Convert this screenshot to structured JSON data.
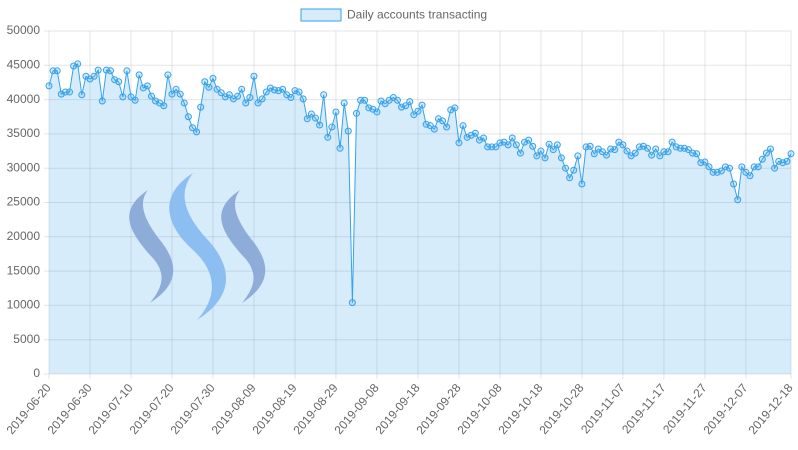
{
  "chart_data": {
    "type": "line",
    "legend": "top",
    "series": [
      {
        "name": "Daily accounts transacting",
        "color": "#36a2eb",
        "values": [
          42000,
          44200,
          44200,
          40800,
          41100,
          41100,
          44900,
          45200,
          40700,
          43400,
          43000,
          43400,
          44300,
          39800,
          44300,
          44200,
          42900,
          42600,
          40400,
          44200,
          40400,
          39900,
          43600,
          41700,
          42000,
          40500,
          39800,
          39500,
          39100,
          43600,
          40800,
          41500,
          40800,
          39500,
          37500,
          35900,
          35300,
          38900,
          42600,
          41800,
          43100,
          41500,
          41000,
          40400,
          40700,
          40100,
          40500,
          41500,
          39500,
          40300,
          43400,
          39500,
          40100,
          41100,
          41700,
          41400,
          41300,
          41500,
          40700,
          40300,
          41300,
          41100,
          40100,
          37200,
          37900,
          37300,
          36300,
          40700,
          34500,
          36000,
          38200,
          32900,
          39500,
          35400,
          10400,
          38000,
          39900,
          39900,
          38800,
          38600,
          38200,
          39800,
          39400,
          39900,
          40300,
          39900,
          38900,
          39100,
          39700,
          37800,
          38300,
          39200,
          36400,
          36200,
          35700,
          37200,
          36900,
          36000,
          38500,
          38800,
          33700,
          36200,
          34500,
          34800,
          35100,
          34100,
          34400,
          33100,
          33100,
          33100,
          33700,
          33800,
          33400,
          34400,
          33400,
          32200,
          33800,
          34100,
          33200,
          31800,
          32500,
          31500,
          33500,
          32700,
          33400,
          31500,
          30000,
          28600,
          29700,
          31800,
          27700,
          33100,
          33200,
          32100,
          32800,
          32400,
          31900,
          32800,
          32700,
          33800,
          33400,
          32500,
          31800,
          32200,
          33100,
          33200,
          32900,
          31900,
          32800,
          31800,
          32400,
          32400,
          33800,
          33100,
          32900,
          32900,
          32700,
          32200,
          32100,
          30800,
          30900,
          30200,
          29400,
          29400,
          29600,
          30200,
          30000,
          27700,
          25400,
          30200,
          29400,
          28900,
          30200,
          30200,
          31300,
          32200,
          32800,
          30000,
          31000,
          30800,
          31000,
          32100
        ]
      }
    ],
    "categories": [
      "2019-06-20",
      null,
      null,
      null,
      null,
      null,
      null,
      null,
      null,
      null,
      "2019-06-30",
      null,
      null,
      null,
      null,
      null,
      null,
      null,
      null,
      null,
      "2019-07-10",
      null,
      null,
      null,
      null,
      null,
      null,
      null,
      null,
      null,
      "2019-07-20",
      null,
      null,
      null,
      null,
      null,
      null,
      null,
      null,
      null,
      "2019-07-30",
      null,
      null,
      null,
      null,
      null,
      null,
      null,
      null,
      null,
      "2019-08-09",
      null,
      null,
      null,
      null,
      null,
      null,
      null,
      null,
      null,
      "2019-08-19",
      null,
      null,
      null,
      null,
      null,
      null,
      null,
      null,
      null,
      "2019-08-29",
      null,
      null,
      null,
      null,
      null,
      null,
      null,
      null,
      null,
      "2019-09-08",
      null,
      null,
      null,
      null,
      null,
      null,
      null,
      null,
      null,
      "2019-09-18",
      null,
      null,
      null,
      null,
      null,
      null,
      null,
      null,
      null,
      "2019-09-28",
      null,
      null,
      null,
      null,
      null,
      null,
      null,
      null,
      null,
      "2019-10-08",
      null,
      null,
      null,
      null,
      null,
      null,
      null,
      null,
      null,
      "2019-10-18",
      null,
      null,
      null,
      null,
      null,
      null,
      null,
      null,
      null,
      "2019-10-28",
      null,
      null,
      null,
      null,
      null,
      null,
      null,
      null,
      null,
      "2019-11-07",
      null,
      null,
      null,
      null,
      null,
      null,
      null,
      null,
      null,
      "2019-11-17",
      null,
      null,
      null,
      null,
      null,
      null,
      null,
      null,
      null,
      "2019-11-27",
      null,
      null,
      null,
      null,
      null,
      null,
      null,
      null,
      null,
      "2019-12-07",
      null,
      null,
      null,
      null,
      null,
      null,
      null,
      null,
      null,
      null,
      "2019-12-18"
    ],
    "ylim": [
      0,
      50000
    ],
    "yticks": [
      0,
      5000,
      10000,
      15000,
      20000,
      25000,
      30000,
      35000,
      40000,
      45000,
      50000
    ],
    "grid": true
  }
}
